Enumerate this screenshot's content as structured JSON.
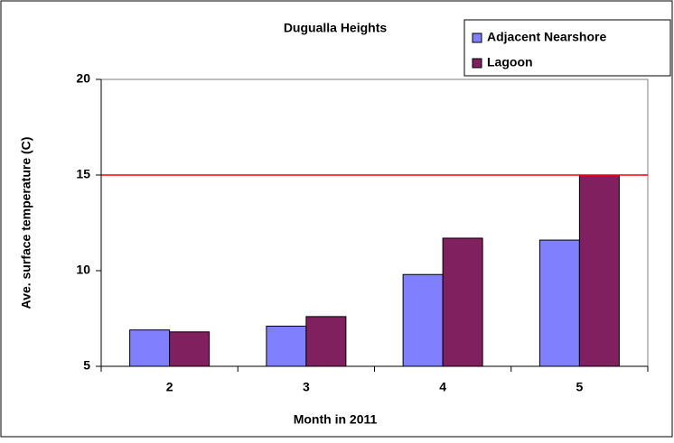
{
  "chart_data": {
    "type": "bar",
    "title": "Dugualla Heights",
    "x_label": "Month in 2011",
    "y_label": "Ave. surface temperature (C)",
    "categories": [
      "2",
      "3",
      "4",
      "5"
    ],
    "series": [
      {
        "name": "Adjacent Nearshore",
        "color": "#8080ff",
        "values": [
          6.9,
          7.1,
          9.8,
          11.6
        ]
      },
      {
        "name": "Lagoon",
        "color": "#80205f",
        "values": [
          6.8,
          7.6,
          11.7,
          15.0
        ]
      }
    ],
    "ylim": [
      5,
      20
    ],
    "yticks": [
      5,
      10,
      15,
      20
    ],
    "reference_line": 15,
    "reference_color": "#ff0000",
    "grid": false,
    "legend": "top-right"
  }
}
